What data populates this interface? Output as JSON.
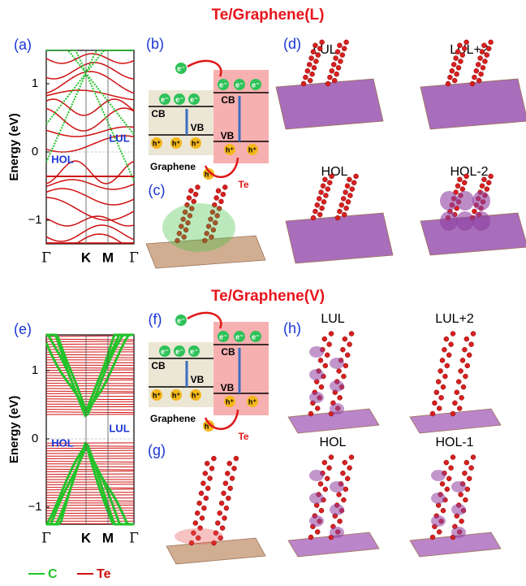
{
  "panels": {
    "top": {
      "title": "Te/Graphene(L)",
      "band": {
        "label": "(a)",
        "y_label": "Energy (eV)",
        "y_ticks": [
          "1",
          "0",
          "−1"
        ],
        "x_ticks": [
          "Γ",
          "K",
          "M",
          "Γ"
        ],
        "hol": "HOL",
        "lul": "LUL"
      },
      "schematic": {
        "label": "(b)",
        "cb": "CB",
        "vb": "VB",
        "graphene": "Graphene",
        "te": "Te",
        "electron": "e⁻",
        "hole": "h⁺"
      },
      "structure": {
        "label": "(c)"
      },
      "orbitals": {
        "label": "(d)",
        "names": [
          "LUL",
          "LUL+2",
          "HOL",
          "HOL-2"
        ]
      }
    },
    "bottom": {
      "title": "Te/Graphene(V)",
      "band": {
        "label": "(e)",
        "y_label": "Energy (eV)",
        "y_ticks": [
          "1",
          "0",
          "−1"
        ],
        "x_ticks": [
          "Γ",
          "K",
          "M",
          "Γ"
        ],
        "hol": "HOL",
        "lul": "LUL"
      },
      "schematic": {
        "label": "(f)",
        "cb": "CB",
        "vb": "VB",
        "graphene": "Graphene",
        "te": "Te",
        "electron": "e⁻",
        "hole": "h⁺"
      },
      "structure": {
        "label": "(g)"
      },
      "orbitals": {
        "label": "(h)",
        "names": [
          "LUL",
          "LUL+2",
          "HOL",
          "HOL-1"
        ]
      }
    }
  },
  "legend": {
    "items": [
      "C",
      "Te"
    ]
  }
}
